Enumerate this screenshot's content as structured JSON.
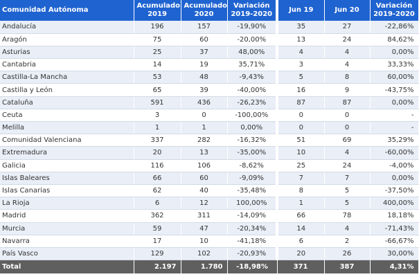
{
  "header": {
    "community": "Comunidad Autónoma",
    "acc2019": "Acumulado 2019",
    "acc2020": "Acumulado 2020",
    "var_acc": "Variación 2019-2020",
    "jun19": "Jun 19",
    "jun20": "Jun 20",
    "var_jun": "Variación 2019-2020"
  },
  "rows": [
    {
      "name": "Andalucía",
      "a2019": "196",
      "a2020": "157",
      "avar": "-19,90%",
      "j19": "35",
      "j20": "27",
      "jvar": "-22,86%"
    },
    {
      "name": "Aragón",
      "a2019": "75",
      "a2020": "60",
      "avar": "-20,00%",
      "j19": "13",
      "j20": "24",
      "jvar": "84,62%"
    },
    {
      "name": "Asturias",
      "a2019": "25",
      "a2020": "37",
      "avar": "48,00%",
      "j19": "4",
      "j20": "4",
      "jvar": "0,00%"
    },
    {
      "name": "Cantabria",
      "a2019": "14",
      "a2020": "19",
      "avar": "35,71%",
      "j19": "3",
      "j20": "4",
      "jvar": "33,33%"
    },
    {
      "name": "Castilla-La Mancha",
      "a2019": "53",
      "a2020": "48",
      "avar": "-9,43%",
      "j19": "5",
      "j20": "8",
      "jvar": "60,00%"
    },
    {
      "name": "Castilla y León",
      "a2019": "65",
      "a2020": "39",
      "avar": "-40,00%",
      "j19": "16",
      "j20": "9",
      "jvar": "-43,75%"
    },
    {
      "name": "Cataluña",
      "a2019": "591",
      "a2020": "436",
      "avar": "-26,23%",
      "j19": "87",
      "j20": "87",
      "jvar": "0,00%"
    },
    {
      "name": "Ceuta",
      "a2019": "3",
      "a2020": "0",
      "avar": "-100,00%",
      "j19": "0",
      "j20": "0",
      "jvar": "-"
    },
    {
      "name": "Melilla",
      "a2019": "1",
      "a2020": "1",
      "avar": "0,00%",
      "j19": "0",
      "j20": "0",
      "jvar": "-"
    },
    {
      "name": "Comunidad Valenciana",
      "a2019": "337",
      "a2020": "282",
      "avar": "-16,32%",
      "j19": "51",
      "j20": "69",
      "jvar": "35,29%"
    },
    {
      "name": "Extremadura",
      "a2019": "20",
      "a2020": "13",
      "avar": "-35,00%",
      "j19": "10",
      "j20": "4",
      "jvar": "-60,00%"
    },
    {
      "name": "Galicia",
      "a2019": "116",
      "a2020": "106",
      "avar": "-8,62%",
      "j19": "25",
      "j20": "24",
      "jvar": "-4,00%"
    },
    {
      "name": "Islas Baleares",
      "a2019": "66",
      "a2020": "60",
      "avar": "-9,09%",
      "j19": "7",
      "j20": "7",
      "jvar": "0,00%"
    },
    {
      "name": "Islas Canarias",
      "a2019": "62",
      "a2020": "40",
      "avar": "-35,48%",
      "j19": "8",
      "j20": "5",
      "jvar": "-37,50%"
    },
    {
      "name": "La Rioja",
      "a2019": "6",
      "a2020": "12",
      "avar": "100,00%",
      "j19": "1",
      "j20": "5",
      "jvar": "400,00%"
    },
    {
      "name": "Madrid",
      "a2019": "362",
      "a2020": "311",
      "avar": "-14,09%",
      "j19": "66",
      "j20": "78",
      "jvar": "18,18%"
    },
    {
      "name": "Murcia",
      "a2019": "59",
      "a2020": "47",
      "avar": "-20,34%",
      "j19": "14",
      "j20": "4",
      "jvar": "-71,43%"
    },
    {
      "name": "Navarra",
      "a2019": "17",
      "a2020": "10",
      "avar": "-41,18%",
      "j19": "6",
      "j20": "2",
      "jvar": "-66,67%"
    },
    {
      "name": "País Vasco",
      "a2019": "129",
      "a2020": "102",
      "avar": "-20,93%",
      "j19": "20",
      "j20": "26",
      "jvar": "30,00%"
    }
  ],
  "total": {
    "name": "Total",
    "a2019": "2.197",
    "a2020": "1.780",
    "avar": "-18,98%",
    "j19": "371",
    "j20": "387",
    "jvar": "4,31%"
  },
  "colors": {
    "header_bg": "#1f63d0",
    "total_bg": "#5f5f5f",
    "stripe": "#e9eef7"
  }
}
